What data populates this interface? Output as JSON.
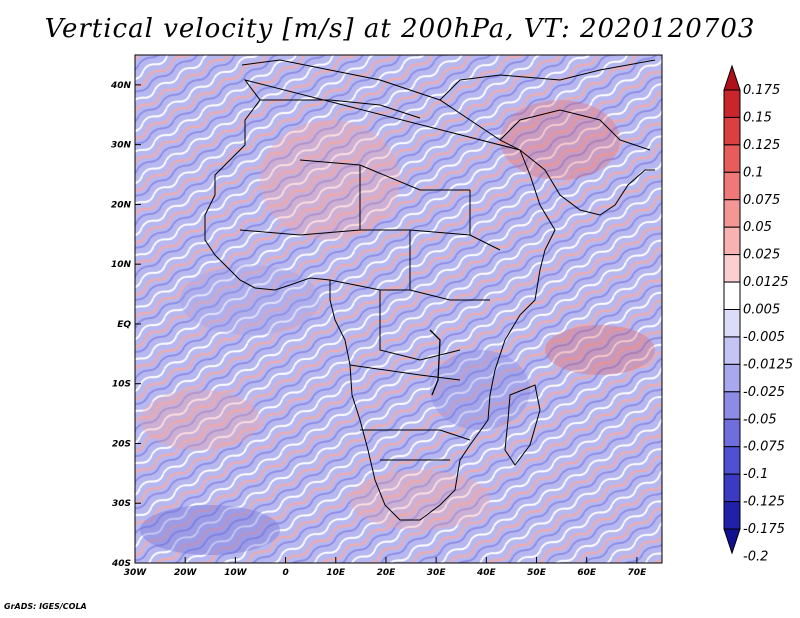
{
  "title": "Vertical velocity [m/s] at 200hPa, VT: 2020120703",
  "credit": "GrADS: IGES/COLA",
  "map": {
    "lat_labels": [
      "40N",
      "30N",
      "20N",
      "10N",
      "EQ",
      "10S",
      "20S",
      "30S",
      "40S"
    ],
    "lat_values": [
      40,
      30,
      20,
      10,
      0,
      -10,
      -20,
      -30,
      -40
    ],
    "lon_labels": [
      "30W",
      "20W",
      "10W",
      "0",
      "10E",
      "20E",
      "30E",
      "40E",
      "50E",
      "60E",
      "70E"
    ],
    "lon_values": [
      -30,
      -20,
      -10,
      0,
      10,
      20,
      30,
      40,
      50,
      60,
      70
    ],
    "lon_range": [
      -30,
      75
    ],
    "lat_range": [
      -40,
      45
    ]
  },
  "colorbar": {
    "labels": [
      "0.175",
      "0.15",
      "0.125",
      "0.1",
      "0.075",
      "0.05",
      "0.025",
      "0.0125",
      "0.005",
      "-0.005",
      "-0.0125",
      "-0.025",
      "-0.05",
      "-0.075",
      "-0.1",
      "-0.125",
      "-0.175",
      "-0.2"
    ],
    "colors": [
      "#b0101a",
      "#c8262b",
      "#dc3f3f",
      "#e85c5c",
      "#f07878",
      "#f59696",
      "#f8b2b2",
      "#fbcfcf",
      "#ffffff",
      "#dcdcfa",
      "#c4c4f5",
      "#a8a8ee",
      "#8c8ce6",
      "#6e6edc",
      "#5050d2",
      "#3a3ac2",
      "#2020a8",
      "#101090"
    ]
  }
}
